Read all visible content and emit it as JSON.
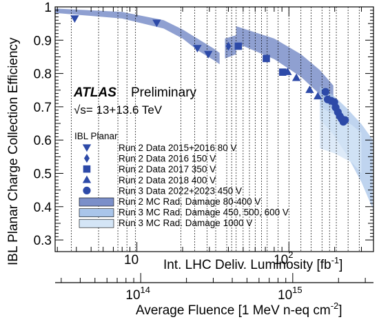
{
  "chart_data": {
    "type": "scatter",
    "ylabel": "IBL Planar Charge Collection Efficiency",
    "xlabel": "Int. LHC Deliv. Luminosity [fb",
    "xlabel_sup": "-1",
    "xlabel_close": "]",
    "x2label": "Average Fluence [1 MeV n-eq cm",
    "x2label_sup": "-2",
    "x2label_close": "]",
    "x_scale": "log",
    "xlim": [
      2.9,
      360
    ],
    "ylim": [
      0.265,
      1.0
    ],
    "y_ticks": [
      "0.3",
      "0.4",
      "0.5",
      "0.6",
      "0.7",
      "0.8",
      "0.9",
      "1"
    ],
    "x_tick_labels": [
      {
        "base": "10",
        "exp": "",
        "value": 10
      },
      {
        "base": "10",
        "exp": "2",
        "value": 100
      }
    ],
    "x2_tick_labels": [
      {
        "base": "10",
        "exp": "14",
        "value_lumi": 10.6
      },
      {
        "base": "10",
        "exp": "15",
        "value_lumi": 106
      }
    ],
    "atlas_label": "ATLAS",
    "atlas_status": "Preliminary",
    "energy_prefix": "√s",
    "energy_text": "= 13+13.6 TeV",
    "legend_title": "IBL Planar",
    "legend_position": "bottom-left",
    "grid": false,
    "vertical_dashed_lines_lumi": [
      3.7,
      5.6,
      7.5,
      8.6,
      9.8,
      19.5,
      24,
      29,
      33,
      39,
      42,
      45,
      50,
      55,
      60,
      66,
      72,
      85,
      100,
      120,
      140,
      165,
      185,
      205,
      245,
      290
    ],
    "series": [
      {
        "name": "Run 2 Data 2015+2016  80 V",
        "marker": "triangle-down",
        "color": "#2d4aa8",
        "points": [
          {
            "x": 3.9,
            "y": 0.965
          },
          {
            "x": 13.5,
            "y": 0.952
          },
          {
            "x": 25,
            "y": 0.876
          },
          {
            "x": 29.5,
            "y": 0.858
          }
        ]
      },
      {
        "name": "Run 2 Data 2016 150 V",
        "marker": "diamond",
        "color": "#2d4aa8",
        "points": [
          {
            "x": 40,
            "y": 0.882
          }
        ]
      },
      {
        "name": "Run 2 Data 2017 350 V",
        "marker": "square",
        "color": "#2d4aa8",
        "points": [
          {
            "x": 46.5,
            "y": 0.882
          },
          {
            "x": 71,
            "y": 0.845
          },
          {
            "x": 91,
            "y": 0.804
          }
        ]
      },
      {
        "name": "Run 2 Data 2018 400 V",
        "marker": "triangle-up",
        "color": "#2d4aa8",
        "points": [
          {
            "x": 98,
            "y": 0.805
          },
          {
            "x": 112,
            "y": 0.787
          },
          {
            "x": 137,
            "y": 0.751
          },
          {
            "x": 155,
            "y": 0.732
          }
        ]
      },
      {
        "name": "Run 3 Data 2022+2023 450 V",
        "marker": "circle",
        "color": "#2d4aa8",
        "points": [
          {
            "x": 174,
            "y": 0.745
          },
          {
            "x": 180,
            "y": 0.722
          },
          {
            "x": 190,
            "y": 0.718
          },
          {
            "x": 199,
            "y": 0.714
          },
          {
            "x": 203,
            "y": 0.698
          },
          {
            "x": 210,
            "y": 0.684
          },
          {
            "x": 216,
            "y": 0.672
          },
          {
            "x": 222,
            "y": 0.664
          },
          {
            "x": 228,
            "y": 0.655
          },
          {
            "x": 234,
            "y": 0.66
          }
        ]
      }
    ],
    "bands": [
      {
        "name": "Run 2 MC Rad. Damage 80-400 V",
        "color": "#7b8fc9",
        "opacity": 0.85,
        "segments": [
          {
            "upper": [
              [
                2.9,
                0.995
              ],
              [
                8,
                0.985
              ],
              [
                15,
                0.96
              ],
              [
                20,
                0.932
              ],
              [
                25,
                0.905
              ],
              [
                32,
                0.875
              ],
              [
                35,
                0.862
              ]
            ],
            "lower": [
              [
                2.9,
                0.982
              ],
              [
                8,
                0.965
              ],
              [
                15,
                0.935
              ],
              [
                20,
                0.905
              ],
              [
                25,
                0.87
              ],
              [
                32,
                0.84
              ],
              [
                35,
                0.828
              ]
            ]
          },
          {
            "upper": [
              [
                38,
                0.905
              ],
              [
                45,
                0.915
              ]
            ],
            "lower": [
              [
                38,
                0.845
              ],
              [
                45,
                0.858
              ]
            ]
          },
          {
            "upper": [
              [
                45,
                0.942
              ],
              [
                80,
                0.905
              ],
              [
                120,
                0.858
              ],
              [
                160,
                0.81
              ],
              [
                196,
                0.764
              ]
            ],
            "lower": [
              [
                45,
                0.892
              ],
              [
                80,
                0.843
              ],
              [
                120,
                0.79
              ],
              [
                160,
                0.737
              ],
              [
                196,
                0.69
              ]
            ]
          }
        ]
      },
      {
        "name": "Run 3 MC Rad. Damage 450, 500, 600 V",
        "color": "#a9c5ea",
        "opacity": 0.75,
        "segments": [
          {
            "upper": [
              [
                160,
                0.762
              ],
              [
                195,
                0.735
              ],
              [
                240,
                0.696
              ],
              [
                300,
                0.648
              ],
              [
                355,
                0.602
              ]
            ],
            "lower": [
              [
                160,
                0.662
              ],
              [
                195,
                0.618
              ],
              [
                240,
                0.556
              ],
              [
                300,
                0.474
              ],
              [
                355,
                0.395
              ]
            ]
          }
        ]
      },
      {
        "name": "Run 3 MC Rad. Damage 1000 V",
        "color": "#d4e5f6",
        "opacity": 0.8,
        "segments": [
          {
            "upper": [
              [
                160,
                0.7
              ],
              [
                200,
                0.676
              ],
              [
                260,
                0.645
              ],
              [
                300,
                0.622
              ]
            ],
            "lower": [
              [
                160,
                0.575
              ],
              [
                200,
                0.56
              ],
              [
                260,
                0.532
              ],
              [
                300,
                0.5
              ]
            ]
          }
        ]
      }
    ]
  }
}
